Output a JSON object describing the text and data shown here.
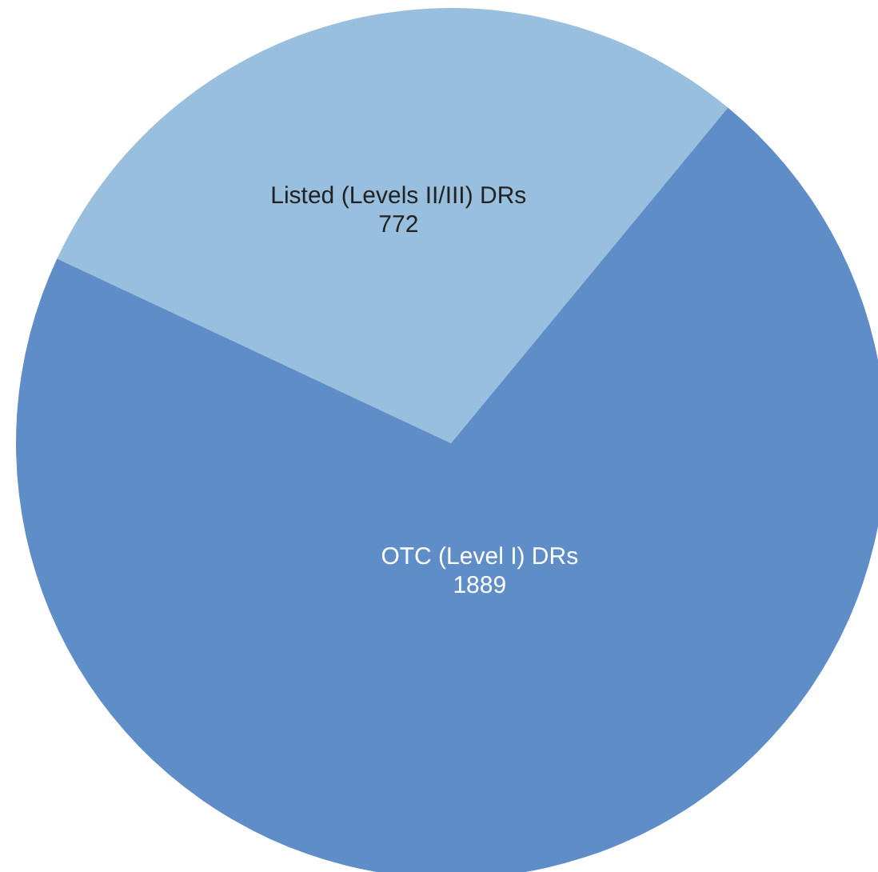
{
  "chart_data": {
    "type": "pie",
    "categories": [
      "Listed (Levels II/III) DRs",
      "OTC (Level I) DRs"
    ],
    "values": [
      772,
      1889
    ],
    "colors": [
      "#98bfdd",
      "#5f8dc8"
    ],
    "data_labels": true,
    "legend": false
  }
}
